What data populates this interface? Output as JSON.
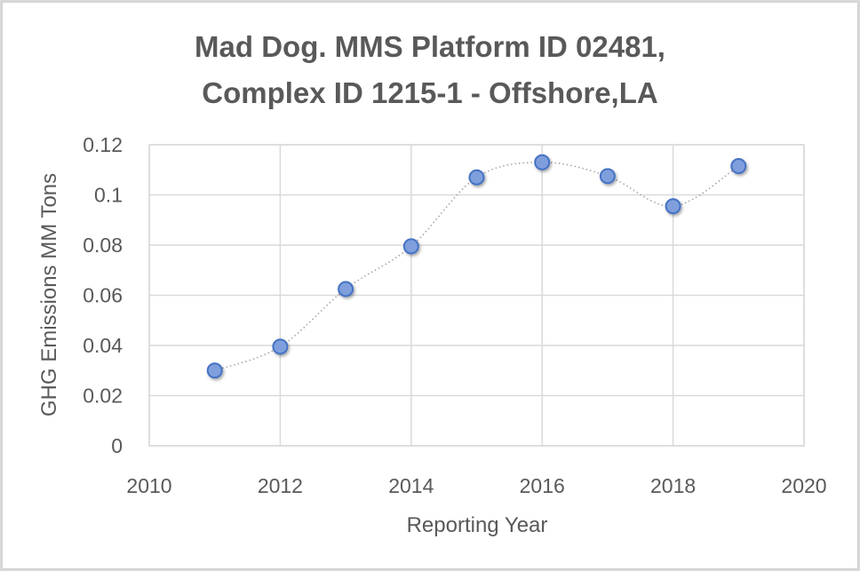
{
  "chart_data": {
    "type": "scatter",
    "title_lines": [
      "Mad Dog. MMS Platform ID 02481,",
      "Complex ID 1215-1 - Offshore,LA"
    ],
    "title": "Mad Dog. MMS Platform ID 02481, Complex ID 1215-1 - Offshore,LA",
    "xlabel": "Reporting Year",
    "ylabel": "GHG Emissions MM Tons",
    "xlim": [
      2010,
      2020
    ],
    "ylim": [
      0,
      0.12
    ],
    "x_ticks": [
      2010,
      2012,
      2014,
      2016,
      2018,
      2020
    ],
    "x_tick_labels": [
      "2010",
      "2012",
      "2014",
      "2016",
      "2018",
      "2020"
    ],
    "y_ticks": [
      0,
      0.02,
      0.04,
      0.06,
      0.08,
      0.1,
      0.12
    ],
    "y_tick_labels": [
      "0",
      "0.02",
      "0.04",
      "0.06",
      "0.08",
      "0.1",
      "0.12"
    ],
    "grid": true,
    "legend": "none",
    "line_style": "smoothed dotted",
    "series": [
      {
        "name": "GHG Emissions",
        "x": [
          2011,
          2012,
          2013,
          2014,
          2015,
          2016,
          2017,
          2018,
          2019
        ],
        "y": [
          0.03,
          0.0395,
          0.0625,
          0.0795,
          0.107,
          0.113,
          0.1075,
          0.0955,
          0.1115
        ],
        "marker_color": "#7f9fdc",
        "marker_edge": "#4472c4",
        "line_color": "#a6a6a6"
      }
    ]
  }
}
